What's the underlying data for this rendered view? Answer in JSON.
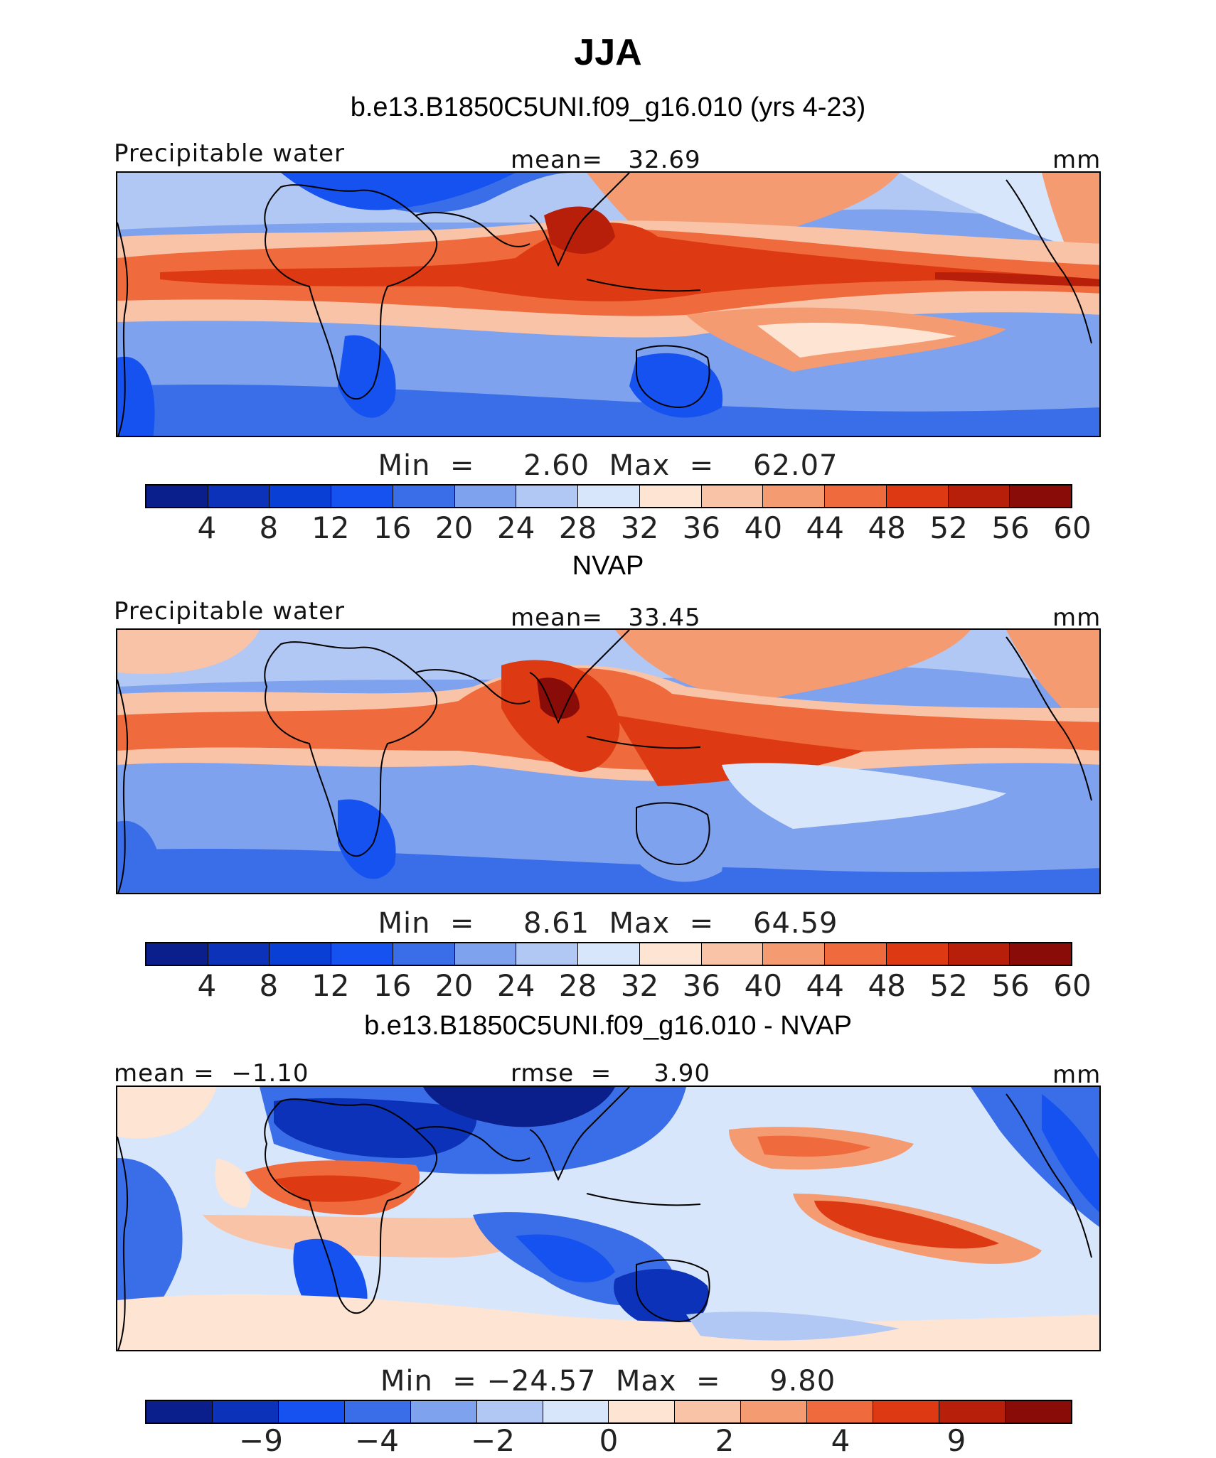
{
  "figure": {
    "title": "JJA",
    "panel1_title": "b.e13.B1850C5UNI.f09_g16.010 (yrs 4-23)",
    "panel2_title": "NVAP",
    "panel3_title": "b.e13.B1850C5UNI.f09_g16.010 - NVAP"
  },
  "panels": [
    {
      "left_label": "Precipitable water",
      "center_label": "mean=   32.69",
      "right_label": "mm",
      "minmax": "Min  =     2.60  Max  =    62.07",
      "colorbar_ticks": [
        "4",
        "8",
        "12",
        "16",
        "20",
        "24",
        "28",
        "32",
        "36",
        "40",
        "44",
        "48",
        "52",
        "56",
        "60"
      ]
    },
    {
      "left_label": "Precipitable water",
      "center_label": "mean=   33.45",
      "right_label": "mm",
      "minmax": "Min  =     8.61  Max  =    64.59",
      "colorbar_ticks": [
        "4",
        "8",
        "12",
        "16",
        "20",
        "24",
        "28",
        "32",
        "36",
        "40",
        "44",
        "48",
        "52",
        "56",
        "60"
      ]
    },
    {
      "left_label": "mean =  −1.10",
      "center_label": "rmse  =     3.90",
      "right_label": "mm",
      "minmax": "Min  = −24.57  Max  =     9.80",
      "colorbar_ticks": [
        "−9",
        "−4",
        "−2",
        "0",
        "2",
        "4",
        "9"
      ]
    }
  ],
  "colors": {
    "abs_scale": [
      "#0a1e8c",
      "#0b32b8",
      "#0a3fd6",
      "#1552f0",
      "#3a6ee8",
      "#7fa2ee",
      "#b2c8f4",
      "#d8e6fb",
      "#fde4d3",
      "#f8c3a7",
      "#f59b72",
      "#ef6a3c",
      "#dd3a14",
      "#b81f0a",
      "#8a0c08"
    ],
    "diff_scale": [
      "#0a1e8c",
      "#0b32b8",
      "#1552f0",
      "#3a6ee8",
      "#7fa2ee",
      "#b2c8f4",
      "#d8e6fb",
      "#fde4d3",
      "#f8c3a7",
      "#f59b72",
      "#ef6a3c",
      "#dd3a14",
      "#b81f0a",
      "#8a0c08"
    ]
  }
}
